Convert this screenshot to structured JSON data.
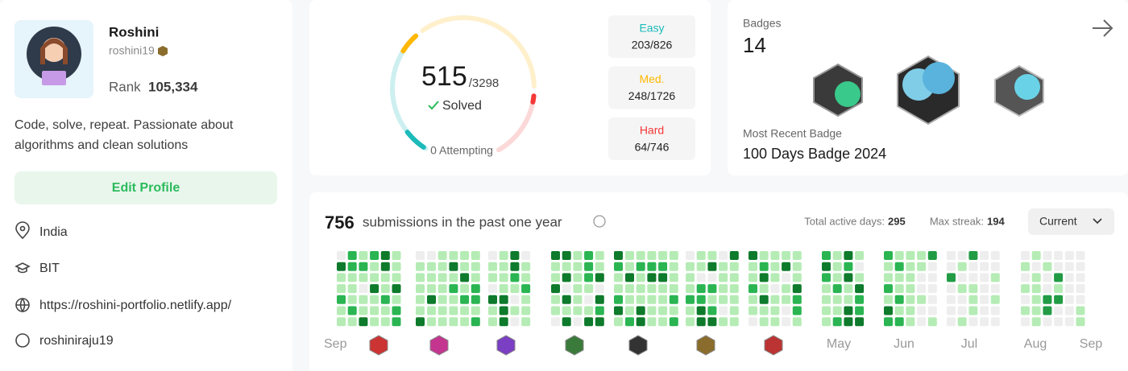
{
  "profile": {
    "name": "Roshini",
    "username": "roshini19",
    "rank_label": "Rank",
    "rank": "105,334",
    "bio": "Code, solve, repeat. Passionate about algorithms and clean solutions",
    "edit_button": "Edit Profile",
    "location": "India",
    "school": "BIT",
    "website": "https://roshini-portfolio.netlify.app/",
    "github": "roshiniraju19"
  },
  "solved": {
    "count": 515,
    "total": "/3298",
    "label": "Solved",
    "attempting": "0 Attempting",
    "difficulties": [
      {
        "label": "Easy",
        "count": "203/826",
        "color": "#1cbaba"
      },
      {
        "label": "Med.",
        "count": "248/1726",
        "color": "#ffb800"
      },
      {
        "label": "Hard",
        "count": "64/746",
        "color": "#f63737"
      }
    ]
  },
  "badges": {
    "title": "Badges",
    "count": 14,
    "recent_label": "Most Recent Badge",
    "recent_name": "100 Days Badge 2024"
  },
  "submissions": {
    "count": 756,
    "text": "submissions in the past one year",
    "active_label": "Total active days:",
    "active": 295,
    "streak_label": "Max streak:",
    "streak": 194,
    "dropdown": "Current",
    "months": [
      "Sep",
      "May",
      "Jun",
      "Jul",
      "Aug",
      "Sep"
    ]
  }
}
